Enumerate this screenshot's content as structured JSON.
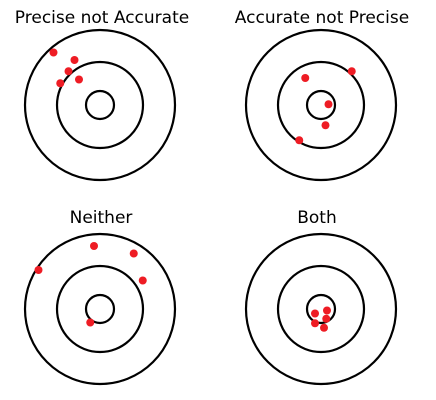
{
  "colors": {
    "ring": "#000000",
    "dot": "#ee1c24",
    "background": "#ffffff"
  },
  "panels": [
    {
      "title": "Precise not Accurate",
      "hits": [
        [
          -0.62,
          -0.7
        ],
        [
          -0.34,
          -0.6
        ],
        [
          -0.42,
          -0.45
        ],
        [
          -0.28,
          -0.34
        ],
        [
          -0.53,
          -0.29
        ]
      ]
    },
    {
      "title": "Accurate not Precise",
      "hits": [
        [
          -0.21,
          -0.36
        ],
        [
          0.41,
          -0.45
        ],
        [
          0.1,
          -0.01
        ],
        [
          0.06,
          0.27
        ],
        [
          -0.29,
          0.47
        ]
      ]
    },
    {
      "title": "Neither",
      "hits": [
        [
          -0.08,
          -0.84
        ],
        [
          0.45,
          -0.74
        ],
        [
          0.57,
          -0.38
        ],
        [
          -0.82,
          -0.52
        ],
        [
          -0.13,
          0.18
        ]
      ]
    },
    {
      "title": "Both",
      "hits": [
        [
          -0.08,
          0.06
        ],
        [
          0.08,
          0.02
        ],
        [
          -0.08,
          0.19
        ],
        [
          0.04,
          0.25
        ],
        [
          0.07,
          0.13
        ]
      ]
    }
  ]
}
